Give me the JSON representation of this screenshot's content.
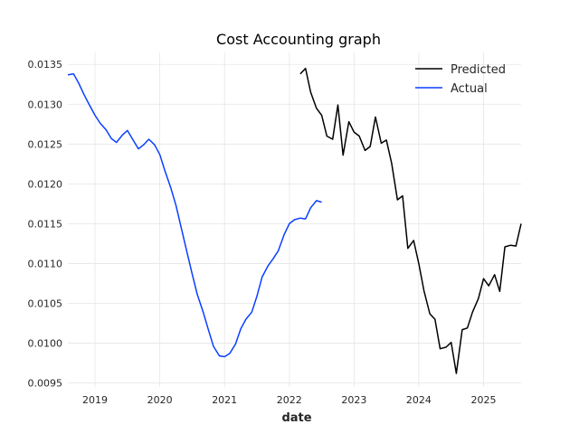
{
  "chart_data": {
    "type": "line",
    "title": "Cost Accounting graph",
    "xlabel": "date",
    "ylabel": "",
    "xlim": [
      2018.58,
      2025.58
    ],
    "ylim": [
      0.00945,
      0.01365
    ],
    "x_ticks": [
      2019,
      2020,
      2021,
      2022,
      2023,
      2024,
      2025
    ],
    "x_tick_labels": [
      "2019",
      "2020",
      "2021",
      "2022",
      "2023",
      "2024",
      "2025"
    ],
    "y_ticks": [
      0.0095,
      0.01,
      0.0105,
      0.011,
      0.0115,
      0.012,
      0.0125,
      0.013,
      0.0135
    ],
    "y_tick_labels": [
      "0.0095",
      "0.0100",
      "0.0105",
      "0.0110",
      "0.0115",
      "0.0120",
      "0.0125",
      "0.0130",
      "0.0135"
    ],
    "grid": true,
    "legend_position": "top-right",
    "series": [
      {
        "name": "Predicted",
        "color": "#000000",
        "x": [
          2022.17,
          2022.25,
          2022.33,
          2022.42,
          2022.5,
          2022.58,
          2022.67,
          2022.75,
          2022.83,
          2022.92,
          2023.0,
          2023.08,
          2023.17,
          2023.25,
          2023.33,
          2023.42,
          2023.5,
          2023.58,
          2023.67,
          2023.75,
          2023.83,
          2023.92,
          2024.0,
          2024.08,
          2024.17,
          2024.25,
          2024.33,
          2024.42,
          2024.5,
          2024.58,
          2024.67,
          2024.75,
          2024.83,
          2024.92,
          2025.0,
          2025.08,
          2025.17,
          2025.25,
          2025.33,
          2025.42,
          2025.5,
          2025.58
        ],
        "values": [
          0.01338,
          0.01345,
          0.01315,
          0.01295,
          0.01286,
          0.0126,
          0.01256,
          0.01299,
          0.01236,
          0.01278,
          0.01265,
          0.0126,
          0.01242,
          0.01247,
          0.01284,
          0.01251,
          0.01255,
          0.01226,
          0.0118,
          0.01185,
          0.01119,
          0.01129,
          0.011,
          0.01066,
          0.01037,
          0.0103,
          0.00993,
          0.00995,
          0.01001,
          0.00962,
          0.01017,
          0.01019,
          0.01039,
          0.01056,
          0.01081,
          0.01072,
          0.01086,
          0.01065,
          0.01121,
          0.01123,
          0.01122,
          0.0115
        ]
      },
      {
        "name": "Actual",
        "color": "#0a3fff",
        "x": [
          2018.58,
          2018.67,
          2018.75,
          2018.83,
          2018.92,
          2019.0,
          2019.08,
          2019.17,
          2019.25,
          2019.33,
          2019.42,
          2019.5,
          2019.58,
          2019.67,
          2019.75,
          2019.83,
          2019.92,
          2020.0,
          2020.08,
          2020.17,
          2020.25,
          2020.33,
          2020.42,
          2020.5,
          2020.58,
          2020.67,
          2020.75,
          2020.83,
          2020.92,
          2021.0,
          2021.08,
          2021.17,
          2021.25,
          2021.33,
          2021.42,
          2021.5,
          2021.58,
          2021.67,
          2021.75,
          2021.83,
          2021.92,
          2022.0,
          2022.08,
          2022.17,
          2022.25,
          2022.33,
          2022.42,
          2022.5
        ],
        "values": [
          0.01337,
          0.01338,
          0.01326,
          0.01312,
          0.01298,
          0.01286,
          0.01276,
          0.01268,
          0.01257,
          0.01252,
          0.01261,
          0.01267,
          0.01256,
          0.01244,
          0.01249,
          0.01256,
          0.01249,
          0.01237,
          0.01216,
          0.01195,
          0.01173,
          0.01145,
          0.01114,
          0.01087,
          0.01061,
          0.01039,
          0.01017,
          0.00996,
          0.00984,
          0.00983,
          0.00987,
          0.00999,
          0.01018,
          0.0103,
          0.01039,
          0.01059,
          0.01083,
          0.01097,
          0.01106,
          0.01116,
          0.01136,
          0.0115,
          0.01155,
          0.01157,
          0.01156,
          0.0117,
          0.01179,
          0.01177
        ]
      }
    ]
  }
}
